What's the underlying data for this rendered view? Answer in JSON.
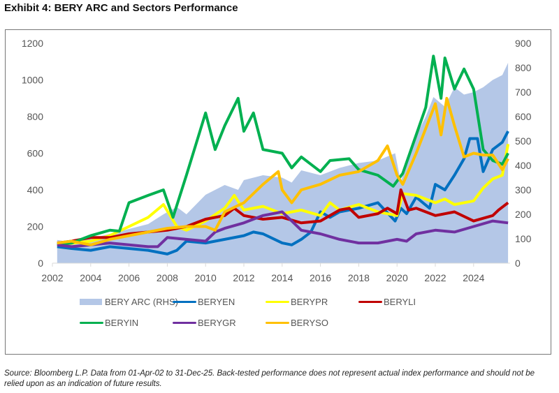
{
  "title": "Exhibit 4: BERY ARC and Sectors Performance",
  "source": "Source: Bloomberg L.P. Data from 01-Apr-02 to 31-Dec-25. Back-tested performance does not represent actual index performance and should not be relied upon as an indication of future results.",
  "chart_data": {
    "type": "line",
    "title": "",
    "xlabel": "",
    "ylabel": "",
    "xlim": [
      2002,
      2025.9
    ],
    "ylim": [
      0,
      1200
    ],
    "y2lim": [
      0,
      900
    ],
    "x_ticks": [
      "2002",
      "2004",
      "2006",
      "2008",
      "2010",
      "2012",
      "2014",
      "2016",
      "2018",
      "2020",
      "2022",
      "2024"
    ],
    "y_ticks": [
      "0",
      "200",
      "400",
      "600",
      "800",
      "1000",
      "1200"
    ],
    "y2_ticks": [
      "0",
      "100",
      "200",
      "300",
      "400",
      "500",
      "600",
      "700",
      "800",
      "900"
    ],
    "grid": false,
    "legend_position": "bottom",
    "series": [
      {
        "name": "BERY ARC (RHS)",
        "type": "area",
        "axis": "right",
        "color": "#b4c7e7",
        "points": [
          [
            2002.25,
            95
          ],
          [
            2003,
            85
          ],
          [
            2004,
            100
          ],
          [
            2005,
            120
          ],
          [
            2006,
            140
          ],
          [
            2007,
            160
          ],
          [
            2007.8,
            200
          ],
          [
            2008.5,
            230
          ],
          [
            2009,
            200
          ],
          [
            2010,
            280
          ],
          [
            2011,
            320
          ],
          [
            2011.7,
            300
          ],
          [
            2012,
            340
          ],
          [
            2013,
            360
          ],
          [
            2014,
            350
          ],
          [
            2014.5,
            330
          ],
          [
            2015,
            380
          ],
          [
            2016,
            360
          ],
          [
            2017,
            390
          ],
          [
            2018,
            410
          ],
          [
            2019,
            420
          ],
          [
            2019.9,
            450
          ],
          [
            2020.2,
            330
          ],
          [
            2020.5,
            420
          ],
          [
            2021,
            520
          ],
          [
            2021.5,
            600
          ],
          [
            2021.9,
            680
          ],
          [
            2022.5,
            640
          ],
          [
            2023,
            720
          ],
          [
            2023.5,
            690
          ],
          [
            2024,
            700
          ],
          [
            2024.5,
            720
          ],
          [
            2025,
            750
          ],
          [
            2025.5,
            770
          ],
          [
            2025.8,
            820
          ]
        ]
      },
      {
        "name": "BERYEN",
        "color": "#0070c0",
        "points": [
          [
            2002.25,
            90
          ],
          [
            2003,
            80
          ],
          [
            2004,
            70
          ],
          [
            2005,
            90
          ],
          [
            2006,
            80
          ],
          [
            2007,
            70
          ],
          [
            2008,
            50
          ],
          [
            2008.5,
            70
          ],
          [
            2009,
            120
          ],
          [
            2010,
            110
          ],
          [
            2011,
            130
          ],
          [
            2012,
            150
          ],
          [
            2012.5,
            170
          ],
          [
            2013,
            160
          ],
          [
            2014,
            110
          ],
          [
            2014.5,
            100
          ],
          [
            2015,
            130
          ],
          [
            2015.5,
            170
          ],
          [
            2016,
            280
          ],
          [
            2016.5,
            250
          ],
          [
            2017,
            280
          ],
          [
            2018,
            300
          ],
          [
            2019,
            330
          ],
          [
            2019.9,
            230
          ],
          [
            2020.2,
            300
          ],
          [
            2020.5,
            270
          ],
          [
            2021,
            360
          ],
          [
            2021.7,
            300
          ],
          [
            2022,
            430
          ],
          [
            2022.5,
            400
          ],
          [
            2023,
            480
          ],
          [
            2023.5,
            570
          ],
          [
            2023.8,
            680
          ],
          [
            2024.2,
            680
          ],
          [
            2024.5,
            500
          ],
          [
            2025,
            620
          ],
          [
            2025.5,
            660
          ],
          [
            2025.8,
            720
          ]
        ]
      },
      {
        "name": "BERYPR",
        "color": "#ffff00",
        "points": [
          [
            2002.25,
            100
          ],
          [
            2004,
            120
          ],
          [
            2005,
            150
          ],
          [
            2006,
            200
          ],
          [
            2007,
            250
          ],
          [
            2007.8,
            320
          ],
          [
            2008.5,
            200
          ],
          [
            2009,
            180
          ],
          [
            2010,
            230
          ],
          [
            2011,
            300
          ],
          [
            2011.5,
            370
          ],
          [
            2012,
            290
          ],
          [
            2013,
            310
          ],
          [
            2014,
            270
          ],
          [
            2015,
            290
          ],
          [
            2016,
            260
          ],
          [
            2016.5,
            330
          ],
          [
            2017,
            290
          ],
          [
            2018,
            320
          ],
          [
            2019,
            280
          ],
          [
            2020,
            260
          ],
          [
            2020.3,
            380
          ],
          [
            2021,
            370
          ],
          [
            2022,
            330
          ],
          [
            2022.5,
            350
          ],
          [
            2023,
            320
          ],
          [
            2024,
            340
          ],
          [
            2024.5,
            410
          ],
          [
            2025,
            460
          ],
          [
            2025.5,
            480
          ],
          [
            2025.8,
            650
          ]
        ]
      },
      {
        "name": "BERYLI",
        "color": "#c00000",
        "points": [
          [
            2002.25,
            110
          ],
          [
            2003,
            120
          ],
          [
            2004,
            140
          ],
          [
            2005,
            140
          ],
          [
            2006,
            160
          ],
          [
            2007,
            170
          ],
          [
            2008,
            180
          ],
          [
            2009,
            200
          ],
          [
            2010,
            240
          ],
          [
            2011,
            260
          ],
          [
            2011.5,
            300
          ],
          [
            2012,
            260
          ],
          [
            2013,
            240
          ],
          [
            2014,
            250
          ],
          [
            2015,
            220
          ],
          [
            2016,
            230
          ],
          [
            2017,
            290
          ],
          [
            2017.5,
            300
          ],
          [
            2018,
            250
          ],
          [
            2019,
            270
          ],
          [
            2019.5,
            300
          ],
          [
            2020,
            270
          ],
          [
            2020.2,
            400
          ],
          [
            2020.6,
            290
          ],
          [
            2021,
            300
          ],
          [
            2022,
            260
          ],
          [
            2023,
            280
          ],
          [
            2024,
            230
          ],
          [
            2025,
            260
          ],
          [
            2025.3,
            290
          ],
          [
            2025.8,
            330
          ]
        ]
      },
      {
        "name": "BERYIN",
        "color": "#00b050",
        "points": [
          [
            2002.25,
            100
          ],
          [
            2003,
            110
          ],
          [
            2004,
            150
          ],
          [
            2005,
            180
          ],
          [
            2005.5,
            175
          ],
          [
            2006,
            330
          ],
          [
            2007,
            370
          ],
          [
            2007.8,
            400
          ],
          [
            2008.3,
            250
          ],
          [
            2009,
            480
          ],
          [
            2009.5,
            650
          ],
          [
            2010,
            820
          ],
          [
            2010.5,
            620
          ],
          [
            2011,
            750
          ],
          [
            2011.7,
            900
          ],
          [
            2012,
            720
          ],
          [
            2012.5,
            820
          ],
          [
            2013,
            620
          ],
          [
            2014,
            600
          ],
          [
            2014.5,
            520
          ],
          [
            2015,
            580
          ],
          [
            2016,
            500
          ],
          [
            2016.5,
            560
          ],
          [
            2017.5,
            570
          ],
          [
            2018,
            510
          ],
          [
            2019,
            480
          ],
          [
            2019.8,
            420
          ],
          [
            2020.3,
            490
          ],
          [
            2021,
            700
          ],
          [
            2021.5,
            850
          ],
          [
            2021.9,
            1130
          ],
          [
            2022.3,
            900
          ],
          [
            2022.5,
            1120
          ],
          [
            2023,
            950
          ],
          [
            2023.5,
            1060
          ],
          [
            2024,
            950
          ],
          [
            2024.5,
            620
          ],
          [
            2025,
            560
          ],
          [
            2025.5,
            540
          ],
          [
            2025.8,
            600
          ]
        ]
      },
      {
        "name": "BERYGR",
        "color": "#7030a0",
        "points": [
          [
            2002.25,
            100
          ],
          [
            2003,
            90
          ],
          [
            2004,
            100
          ],
          [
            2005,
            110
          ],
          [
            2006,
            100
          ],
          [
            2007,
            90
          ],
          [
            2007.5,
            90
          ],
          [
            2008,
            140
          ],
          [
            2009,
            130
          ],
          [
            2010,
            120
          ],
          [
            2010.5,
            170
          ],
          [
            2011,
            190
          ],
          [
            2012,
            220
          ],
          [
            2012.5,
            240
          ],
          [
            2013,
            260
          ],
          [
            2014,
            280
          ],
          [
            2014.5,
            230
          ],
          [
            2015,
            180
          ],
          [
            2016,
            160
          ],
          [
            2017,
            130
          ],
          [
            2018,
            110
          ],
          [
            2019,
            110
          ],
          [
            2020,
            130
          ],
          [
            2020.5,
            120
          ],
          [
            2021,
            160
          ],
          [
            2022,
            180
          ],
          [
            2023,
            170
          ],
          [
            2024,
            200
          ],
          [
            2025,
            230
          ],
          [
            2025.8,
            220
          ]
        ]
      },
      {
        "name": "BERYSO",
        "color": "#ffc000",
        "points": [
          [
            2002.25,
            110
          ],
          [
            2003,
            120
          ],
          [
            2004,
            100
          ],
          [
            2005,
            130
          ],
          [
            2006,
            150
          ],
          [
            2007,
            170
          ],
          [
            2008,
            190
          ],
          [
            2009,
            200
          ],
          [
            2010,
            200
          ],
          [
            2010.5,
            180
          ],
          [
            2011,
            280
          ],
          [
            2012,
            330
          ],
          [
            2013,
            430
          ],
          [
            2013.8,
            500
          ],
          [
            2014,
            400
          ],
          [
            2014.5,
            330
          ],
          [
            2015,
            400
          ],
          [
            2016,
            430
          ],
          [
            2017,
            480
          ],
          [
            2018,
            500
          ],
          [
            2019,
            560
          ],
          [
            2019.5,
            640
          ],
          [
            2020,
            480
          ],
          [
            2020.3,
            430
          ],
          [
            2021,
            600
          ],
          [
            2022,
            870
          ],
          [
            2022.3,
            700
          ],
          [
            2022.6,
            900
          ],
          [
            2023,
            750
          ],
          [
            2023.5,
            580
          ],
          [
            2024,
            600
          ],
          [
            2024.5,
            590
          ],
          [
            2025,
            590
          ],
          [
            2025.5,
            510
          ],
          [
            2025.8,
            570
          ]
        ]
      }
    ]
  }
}
